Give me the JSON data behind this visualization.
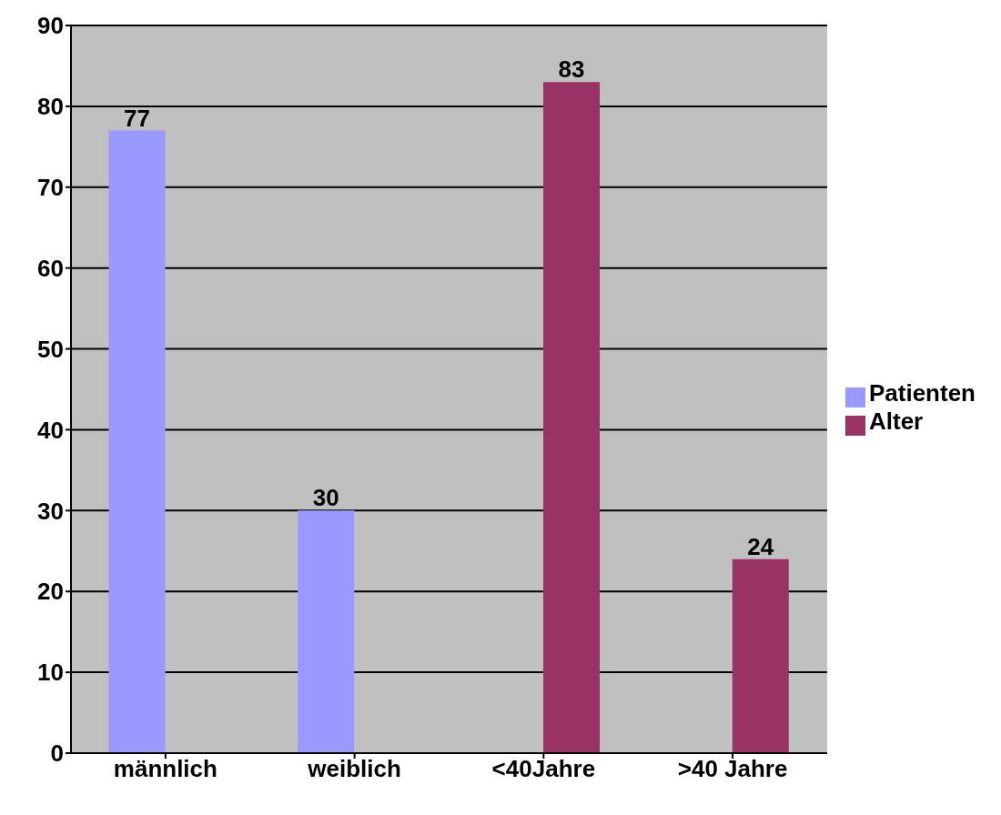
{
  "chart_data": {
    "type": "bar",
    "categories": [
      "männlich",
      "weiblich",
      "<40Jahre",
      ">40 Jahre"
    ],
    "series": [
      {
        "name": "Patienten",
        "color": "#9999ff",
        "values": [
          77,
          30,
          null,
          null
        ]
      },
      {
        "name": "Alter",
        "color": "#993366",
        "values": [
          null,
          null,
          83,
          24
        ]
      }
    ],
    "ylim": [
      0,
      90
    ],
    "yticks": [
      0,
      10,
      20,
      30,
      40,
      50,
      60,
      70,
      80,
      90
    ],
    "grid": "y",
    "legend": "right",
    "data_labels": true
  }
}
